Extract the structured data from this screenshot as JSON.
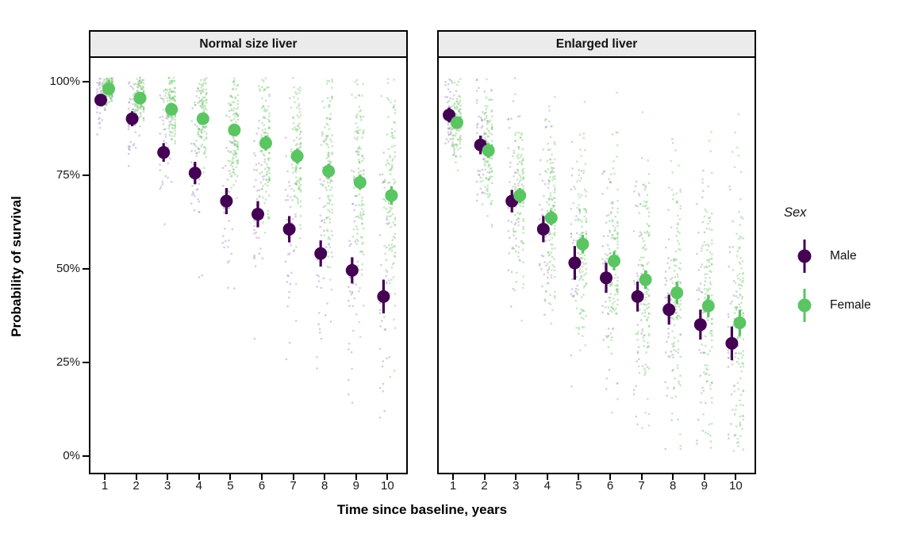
{
  "chart_data": {
    "type": "scatter",
    "description": "Faceted pointrange plot of predicted survival probability over time by sex, with jittered individual prediction clouds behind summary points",
    "facets": [
      "Normal size liver",
      "Enlarged liver"
    ],
    "xlabel": "Time since baseline, years",
    "ylabel": "Probability of survival",
    "x_ticks": [
      "1",
      "2",
      "3",
      "4",
      "5",
      "6",
      "7",
      "8",
      "9",
      "10"
    ],
    "x": [
      1,
      2,
      3,
      4,
      5,
      6,
      7,
      8,
      9,
      10
    ],
    "y_ticks": [
      "0%",
      "25%",
      "50%",
      "75%",
      "100%"
    ],
    "y_tick_values": [
      0,
      25,
      50,
      75,
      100
    ],
    "ylim": [
      0,
      100
    ],
    "grid": false,
    "legend": {
      "title": "Sex",
      "position": "right",
      "entries": [
        {
          "label": "Male",
          "color": "#440154"
        },
        {
          "label": "Female",
          "color": "#5bc563"
        }
      ]
    },
    "series": [
      {
        "facet": "Normal size liver",
        "name": "Male",
        "color": "#440154",
        "values": [
          95,
          90,
          81,
          75.5,
          68,
          64.5,
          60.5,
          54,
          49.5,
          42.5
        ],
        "ci_half_width": [
          1.5,
          2,
          2.5,
          3,
          3.5,
          3.5,
          3.5,
          3.5,
          3.5,
          4.5
        ]
      },
      {
        "facet": "Normal size liver",
        "name": "Female",
        "color": "#5bc563",
        "values": [
          98,
          95.5,
          92.5,
          90,
          87,
          83.5,
          80,
          76,
          73,
          69.5
        ],
        "ci_half_width": [
          1,
          1,
          1.5,
          1.5,
          1.5,
          2,
          2,
          2,
          2,
          2.5
        ]
      },
      {
        "facet": "Enlarged liver",
        "name": "Male",
        "color": "#440154",
        "values": [
          91,
          83,
          68,
          60.5,
          51.5,
          47.5,
          42.5,
          39,
          35,
          30
        ],
        "ci_half_width": [
          2,
          2.5,
          3,
          3.5,
          4.5,
          4,
          4,
          4,
          4,
          4.5
        ]
      },
      {
        "facet": "Enlarged liver",
        "name": "Female",
        "color": "#5bc563",
        "values": [
          89,
          81.5,
          69.5,
          63.5,
          56.5,
          52,
          47,
          43.5,
          40,
          35.5
        ],
        "ci_half_width": [
          1.5,
          2,
          2,
          2,
          2.5,
          2.5,
          2.5,
          3,
          3,
          3.5
        ]
      }
    ],
    "jitter_clouds": {
      "note": "semi-transparent individual predictions scattered behind each summary point",
      "female_color": "#69bf63",
      "male_color": "#a98cc4",
      "female_opacity": 0.38,
      "male_opacity": 0.45,
      "female_count_per_year": 120,
      "male_count_per_year": 38,
      "panels": [
        {
          "facet": "Normal size liver",
          "female_sd": [
            2.5,
            3.5,
            5,
            6.5,
            8,
            10,
            11.5,
            13,
            15,
            17
          ],
          "male_sd": [
            5,
            7,
            9,
            11,
            13,
            14,
            15,
            16,
            17,
            18
          ]
        },
        {
          "facet": "Enlarged liver",
          "female_sd": [
            5,
            8,
            11,
            13,
            15,
            16,
            17,
            18,
            19,
            20
          ],
          "male_sd": [
            7,
            10,
            13,
            15,
            17,
            18,
            19,
            19,
            20,
            21
          ]
        }
      ]
    }
  },
  "colors": {
    "male": "#440154",
    "female": "#5bc563",
    "strip_background": "#ebebeb",
    "panel_border": "#000000",
    "tick_label": "#1a1a1a",
    "background": "#ffffff"
  }
}
